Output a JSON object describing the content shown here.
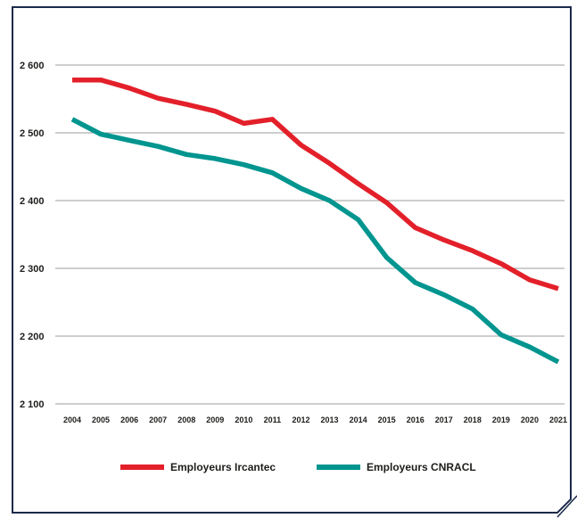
{
  "chart_data": {
    "type": "line",
    "title": "",
    "xlabel": "",
    "ylabel": "",
    "x": [
      "2004",
      "2005",
      "2006",
      "2007",
      "2008",
      "2009",
      "2010",
      "2011",
      "2012",
      "2013",
      "2014",
      "2015",
      "2016",
      "2017",
      "2018",
      "2019",
      "2020",
      "2021"
    ],
    "y_ticks": [
      {
        "value": 2100,
        "label": "2 100"
      },
      {
        "value": 2200,
        "label": "2 200"
      },
      {
        "value": 2300,
        "label": "2 300"
      },
      {
        "value": 2400,
        "label": "2 400"
      },
      {
        "value": 2500,
        "label": "2 500"
      },
      {
        "value": 2600,
        "label": "2 600"
      }
    ],
    "ylim": [
      2100,
      2600
    ],
    "grid": "horizontal",
    "legend_position": "bottom",
    "series": [
      {
        "name": "Employeurs Ircantec",
        "color": "#e3202a",
        "values": [
          2578,
          2578,
          2566,
          2551,
          2542,
          2532,
          2514,
          2520,
          2482,
          2455,
          2425,
          2397,
          2360,
          2342,
          2326,
          2307,
          2283,
          2270
        ]
      },
      {
        "name": "Employeurs CNRACL",
        "color": "#00958f",
        "values": [
          2520,
          2498,
          2489,
          2480,
          2468,
          2462,
          2453,
          2441,
          2418,
          2400,
          2372,
          2316,
          2279,
          2261,
          2240,
          2202,
          2184,
          2162
        ]
      }
    ]
  },
  "frame": {
    "border_color": "#1b2a4a",
    "grid_color": "#9d9d9c"
  }
}
